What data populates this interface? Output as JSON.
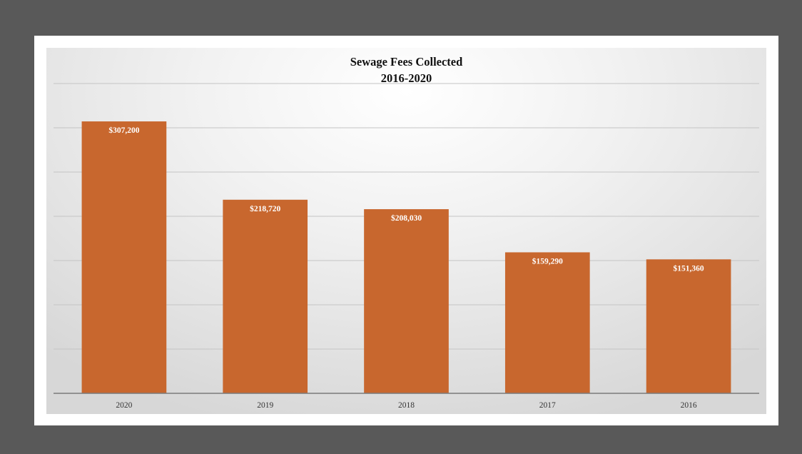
{
  "chart_data": {
    "type": "bar",
    "title": "Sewage Fees Collected",
    "subtitle": "2016-2020",
    "categories": [
      "2020",
      "2019",
      "2018",
      "2017",
      "2016"
    ],
    "values": [
      307200,
      218720,
      208030,
      159290,
      151360
    ],
    "data_labels": [
      "$307,200",
      "$218,720",
      "$208,030",
      "$159,290",
      "$151,360"
    ],
    "xlabel": "",
    "ylabel": "",
    "ylim": [
      0,
      350000
    ],
    "y_gridline_step": 50000,
    "y_axis_labels_visible": false,
    "grid": true,
    "legend": "none",
    "bar_color": "#c8672e",
    "data_label_color": "#ffffff"
  }
}
